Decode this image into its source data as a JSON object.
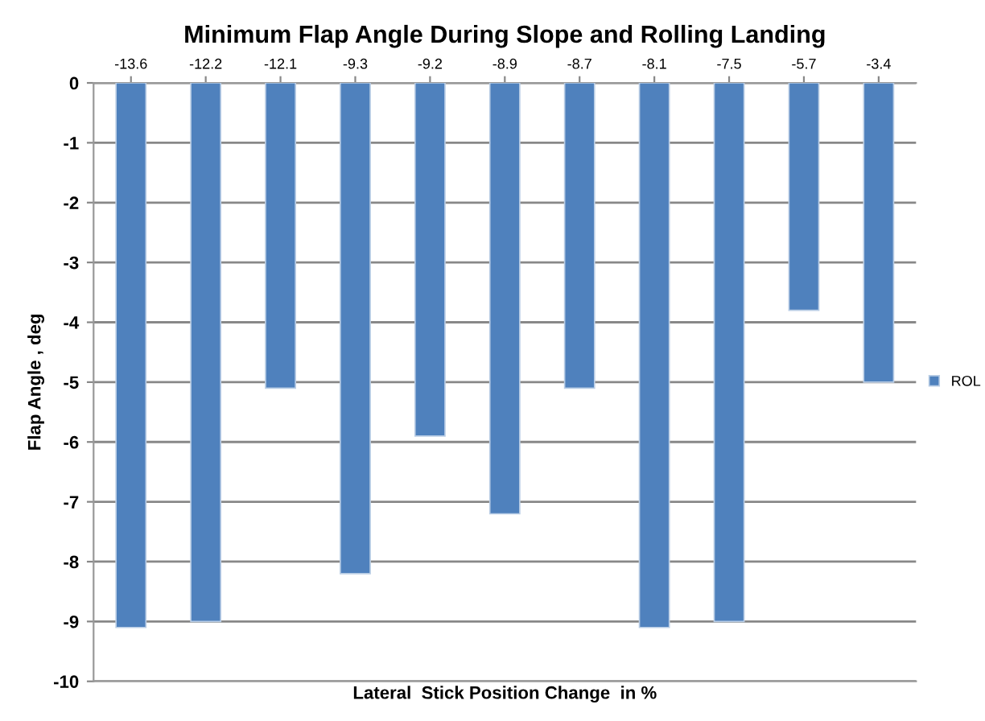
{
  "chart_data": {
    "type": "bar",
    "title": "Minimum Flap Angle During Slope and Rolling Landing",
    "xlabel": "Lateral  Stick Position Change  in %",
    "ylabel": "Flap Angle , deg",
    "categories": [
      "-13.6",
      "-12.2",
      "-12.1",
      "-9.3",
      "-9.2",
      "-8.9",
      "-8.7",
      "-8.1",
      "-7.5",
      "-5.7",
      "-3.4"
    ],
    "series": [
      {
        "name": "ROL",
        "color": "#4f81bd",
        "values": [
          -9.1,
          -9.0,
          -5.1,
          -8.2,
          -5.9,
          -7.2,
          -5.1,
          -9.1,
          -9.0,
          -3.8,
          -5.0
        ]
      }
    ],
    "ylim": [
      -10,
      0
    ],
    "yticks": [
      -10,
      -9,
      -8,
      -7,
      -6,
      -5,
      -4,
      -3,
      -2,
      -1,
      0
    ],
    "grid": "y",
    "legend": "right"
  }
}
